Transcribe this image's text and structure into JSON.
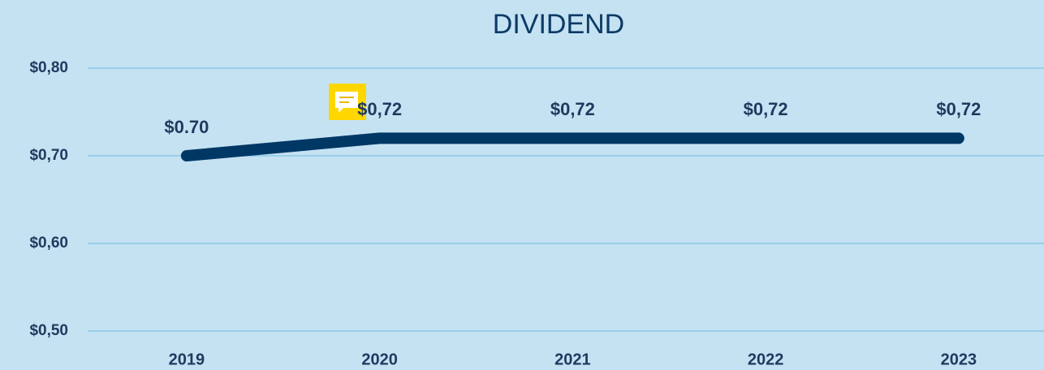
{
  "chart_data": {
    "type": "line",
    "title": "DIVIDEND",
    "categories": [
      "2019",
      "2020",
      "2021",
      "2022",
      "2023"
    ],
    "series": [
      {
        "name": "Dividend",
        "color": "#003865",
        "values": [
          0.7,
          0.72,
          0.72,
          0.72,
          0.72
        ],
        "value_labels": [
          "$0.70",
          "$0,72",
          "$0,72",
          "$0,72",
          "$0,72"
        ]
      }
    ],
    "ylim": [
      0.5,
      0.8
    ],
    "yticks": [
      {
        "value": 0.5,
        "label": "$0,50"
      },
      {
        "value": 0.6,
        "label": "$0,60"
      },
      {
        "value": 0.7,
        "label": "$0,70"
      },
      {
        "value": 0.8,
        "label": "$0,80"
      }
    ],
    "grid": true
  }
}
